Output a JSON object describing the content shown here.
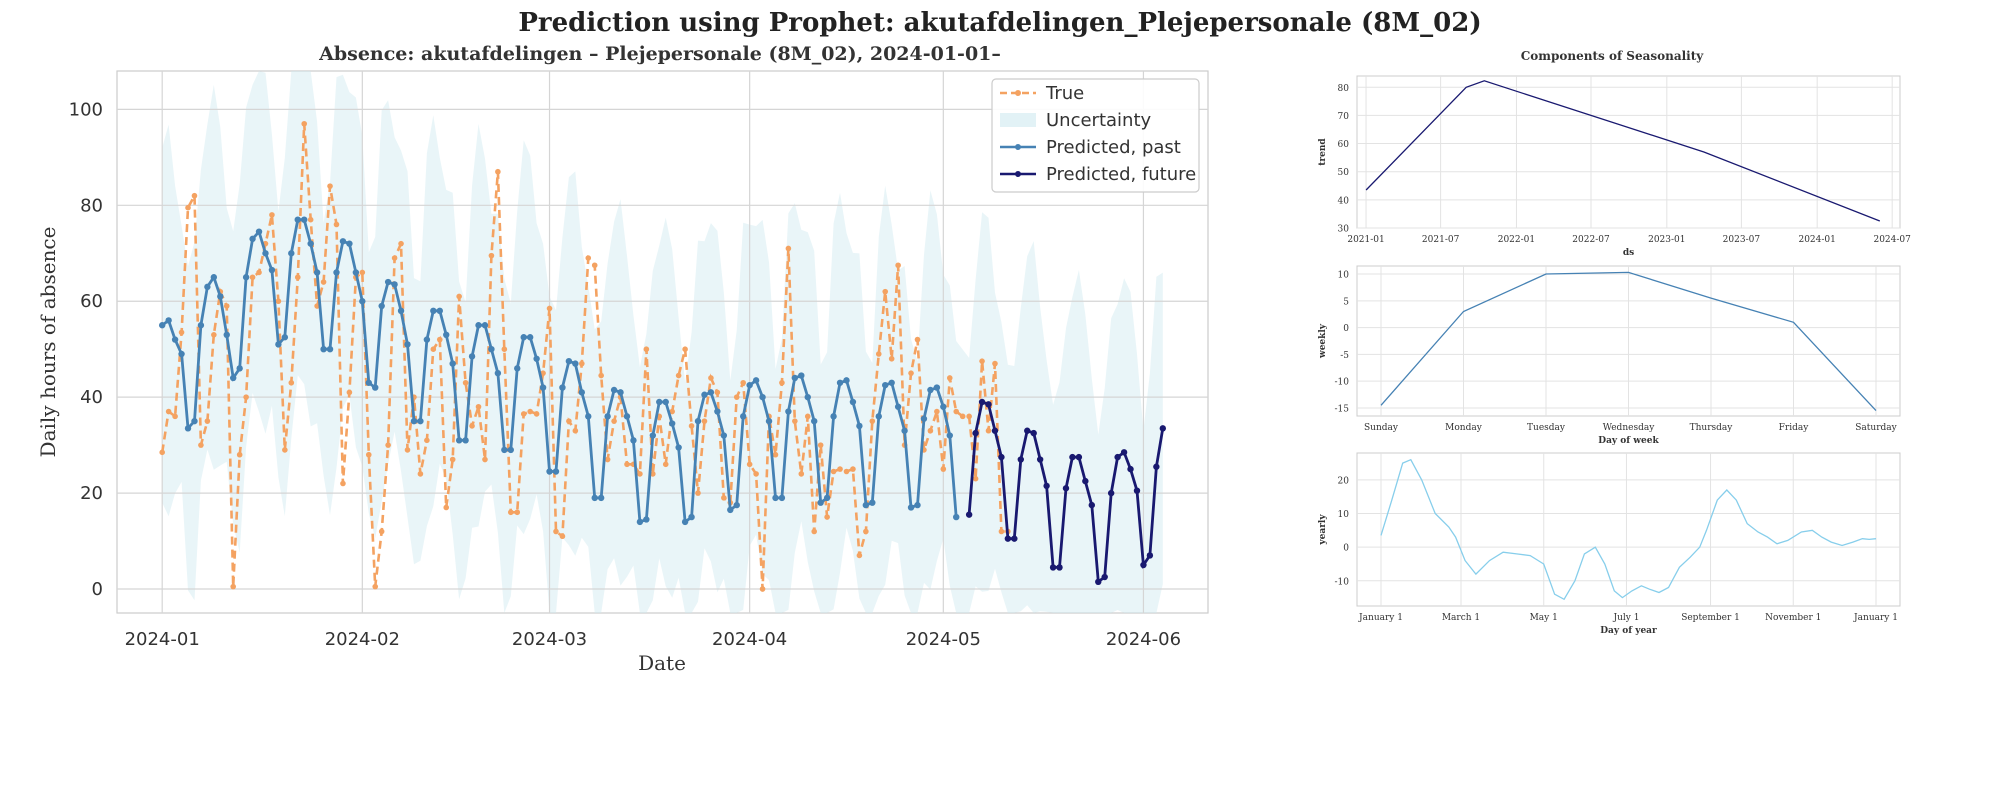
{
  "figure": {
    "title": "Prediction using Prophet: akutafdelingen_Plejepersonale (8M_02)"
  },
  "chart_data": [
    {
      "type": "line",
      "title": "Absence: akutafdelingen – Plejepersonale (8M_02), 2024-01-01–",
      "xlabel": "Date",
      "ylabel": "Daily hours of absence",
      "xlim": [
        "2023-12-25",
        "2024-06-11"
      ],
      "ylim": [
        -5,
        108
      ],
      "yticks": [
        0,
        20,
        40,
        60,
        80,
        100
      ],
      "xticks": [
        "2024-01-01",
        "2024-02-01",
        "2024-03-01",
        "2024-04-01",
        "2024-05-01",
        "2024-06-01"
      ],
      "xtick_labels": [
        "2024-01",
        "2024-02",
        "2024-03",
        "2024-04",
        "2024-05",
        "2024-06"
      ],
      "grid": true,
      "legend_position": "top-right",
      "legend": [
        "True",
        "Uncertainty",
        "Predicted, past",
        "Predicted, future"
      ],
      "colors": {
        "true": "#f4a261",
        "uncertainty": "#cfe9f0",
        "past": "#4682b4",
        "future": "#191970"
      },
      "start_date": "2024-01-01",
      "true_values": [
        28.5,
        37,
        36,
        53.5,
        79.5,
        82,
        30,
        35,
        53,
        62,
        59,
        0.5,
        28,
        40,
        65,
        66,
        72,
        78,
        60,
        29,
        43,
        65,
        97,
        77,
        59,
        64,
        84,
        76,
        22,
        41,
        65,
        66,
        28,
        0.5,
        12,
        30,
        69,
        72,
        29,
        40,
        24,
        31,
        50,
        52,
        17,
        27,
        61,
        43,
        34,
        38,
        27,
        69.5,
        87,
        50,
        16,
        16,
        36.5,
        37,
        36.5,
        45,
        58.5,
        12,
        11,
        35,
        33,
        47,
        69,
        67.5,
        44.5,
        27,
        35,
        40,
        26,
        26,
        24,
        50,
        24,
        36,
        26,
        37,
        44.5,
        50,
        34,
        20,
        35,
        44,
        41,
        19,
        18,
        40,
        43,
        26,
        24,
        0,
        36,
        28,
        43,
        71,
        35,
        24,
        36,
        12,
        30,
        15,
        24.5,
        25,
        24.5,
        25,
        7,
        12,
        35,
        49,
        62,
        48,
        67.5,
        30,
        45,
        52,
        29,
        33,
        37,
        25,
        44,
        37,
        36,
        36,
        23,
        47.5,
        33,
        47,
        12,
        12
      ],
      "past_values": [
        55,
        56,
        52,
        49,
        33.5,
        35,
        55,
        63,
        65,
        61,
        53,
        44,
        46,
        65,
        73,
        74.5,
        70,
        66.5,
        51,
        52.5,
        70,
        77,
        77,
        72,
        66,
        50,
        50,
        66,
        72.5,
        72,
        66,
        60,
        43,
        42,
        59,
        64,
        63.5,
        58,
        51,
        35,
        35,
        52,
        58,
        58,
        53,
        47,
        31,
        31,
        48.5,
        55,
        55,
        50,
        45,
        29,
        29,
        46,
        52.5,
        52.5,
        48,
        42,
        24.5,
        24.5,
        42,
        47.5,
        47,
        41,
        36,
        19,
        19,
        36,
        41.5,
        41,
        36,
        31,
        14,
        14.5,
        32,
        39,
        39,
        34.5,
        29.5,
        14,
        15,
        35,
        40.5,
        41,
        37,
        32,
        16.5,
        17.5,
        36,
        42.5,
        43.5,
        40,
        35,
        19,
        19,
        37,
        44,
        44.5,
        40,
        35,
        18,
        19,
        36,
        43,
        43.5,
        39,
        34,
        17.5,
        18,
        36,
        42.5,
        43,
        38,
        33,
        17,
        17.5,
        35.5,
        41.5,
        42,
        38,
        32,
        15
      ],
      "future_start_date": "2024-05-05",
      "future_values": [
        15.5,
        32.5,
        39,
        38.5,
        33,
        27.5,
        10.5,
        10.5,
        27,
        33,
        32.5,
        27,
        21.5,
        4.5,
        4.5,
        21,
        27.5,
        27.5,
        22.5,
        17.5,
        1.5,
        2.5,
        20,
        27.5,
        28.5,
        25,
        20.5,
        5,
        7,
        25.5,
        33.5
      ],
      "uncertainty_band": {
        "approx_width": 34
      }
    },
    {
      "type": "line",
      "title": "Components of Seasonality",
      "xlabel": "ds",
      "ylabel": "trend",
      "xtick_labels": [
        "2021-01",
        "2021-07",
        "2022-01",
        "2022-07",
        "2023-01",
        "2023-07",
        "2024-01",
        "2024-07"
      ],
      "yticks": [
        30,
        40,
        50,
        60,
        70,
        80
      ],
      "ylim": [
        30,
        84
      ],
      "x": [
        "2021-01-01",
        "2021-09-01",
        "2021-10-15",
        "2023-04-01",
        "2024-06-01"
      ],
      "y": [
        43.5,
        80,
        82.3,
        57,
        32.5
      ],
      "color": "#191970"
    },
    {
      "type": "line",
      "xlabel": "Day of week",
      "ylabel": "weekly",
      "categories": [
        "Sunday",
        "Monday",
        "Tuesday",
        "Wednesday",
        "Thursday",
        "Friday",
        "Saturday"
      ],
      "values": [
        -14.5,
        3,
        10,
        10.3,
        5.5,
        1,
        -15.5
      ],
      "yticks": [
        -15,
        -10,
        -5,
        0,
        5,
        10
      ],
      "ylim": [
        -16.5,
        11.5
      ],
      "color": "#4682b4"
    },
    {
      "type": "line",
      "xlabel": "Day of year",
      "ylabel": "yearly",
      "xtick_labels": [
        "January 1",
        "March 1",
        "May 1",
        "July 1",
        "September 1",
        "November 1",
        "January 1"
      ],
      "xtick_days": [
        0,
        59,
        120,
        181,
        243,
        304,
        365
      ],
      "yticks": [
        -10,
        0,
        10,
        20
      ],
      "ylim": [
        -17.5,
        28
      ],
      "days": [
        0,
        8,
        16,
        22,
        30,
        40,
        50,
        55,
        62,
        70,
        80,
        90,
        100,
        110,
        120,
        128,
        135,
        143,
        150,
        158,
        165,
        172,
        178,
        185,
        192,
        198,
        205,
        212,
        220,
        228,
        235,
        240,
        248,
        255,
        262,
        270,
        278,
        285,
        292,
        300,
        310,
        318,
        325,
        332,
        340,
        348,
        355,
        360,
        365
      ],
      "values": [
        3.5,
        14,
        25,
        26,
        20,
        10,
        6,
        3,
        -4,
        -8,
        -4,
        -1.5,
        -2,
        -2.5,
        -5,
        -14,
        -15.5,
        -10,
        -2,
        0,
        -5,
        -13,
        -15,
        -13,
        -11.5,
        -12.5,
        -13.5,
        -12,
        -6,
        -3,
        0,
        5,
        14,
        17,
        14,
        7,
        4.5,
        3,
        1,
        2,
        4.5,
        5,
        3,
        1.5,
        0.5,
        1.5,
        2.5,
        2.3,
        2.5
      ],
      "color": "#87ceeb"
    }
  ]
}
